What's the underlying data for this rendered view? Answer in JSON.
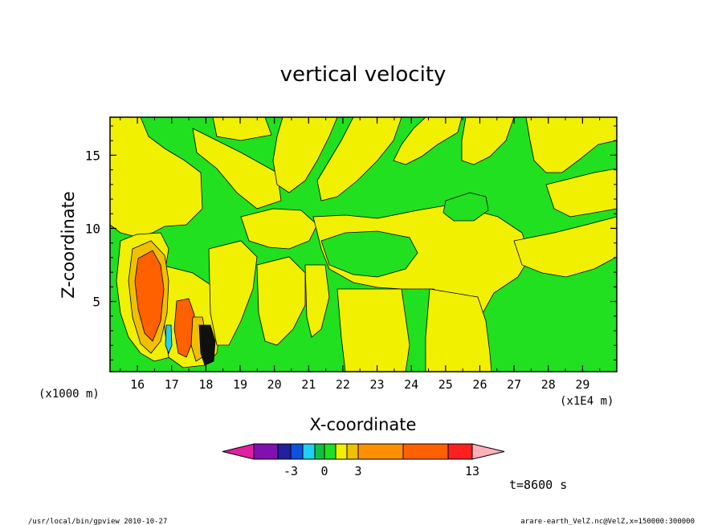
{
  "chart_data": {
    "type": "heatmap",
    "title": "vertical velocity",
    "xlabel": "X-coordinate",
    "ylabel": "Z-coordinate",
    "x_unit_label": "(x1E4 m)",
    "z_unit_label": "(x1000 m)",
    "xlim": [
      15.2,
      30.0
    ],
    "ylim": [
      0.2,
      17.6
    ],
    "x_ticks": [
      "16",
      "17",
      "18",
      "19",
      "20",
      "21",
      "22",
      "23",
      "24",
      "25",
      "26",
      "27",
      "28",
      "29"
    ],
    "x_tick_values": [
      16,
      17,
      18,
      19,
      20,
      21,
      22,
      23,
      24,
      25,
      26,
      27,
      28,
      29
    ],
    "y_ticks": [
      "5",
      "10",
      "15"
    ],
    "y_tick_values": [
      5,
      10,
      15
    ],
    "time_label": "t=8600 s",
    "colorbar": {
      "colors": [
        "#e020a0",
        "#8010b0",
        "#2020a0",
        "#1050e0",
        "#20d0f0",
        "#10c040",
        "#20e020",
        "#f0f000",
        "#f0c000",
        "#ff9000",
        "#ff6000",
        "#ff2020",
        "#ff7878",
        "#ffb0b8"
      ],
      "tick_labels": [
        "-3",
        "0",
        "3",
        "13"
      ],
      "tick_values": [
        -3,
        0,
        3,
        13
      ]
    },
    "colors": {
      "negative_weak": "#20e020",
      "positive_weak": "#f0f000",
      "positive_mid": "#f0c000",
      "positive_strong": "#ff6000"
    }
  },
  "footer": {
    "left": "/usr/local/bin/gpview   2010-10-27",
    "right": "arare-earth_VelZ.nc@VelZ,x=150000:300000"
  }
}
